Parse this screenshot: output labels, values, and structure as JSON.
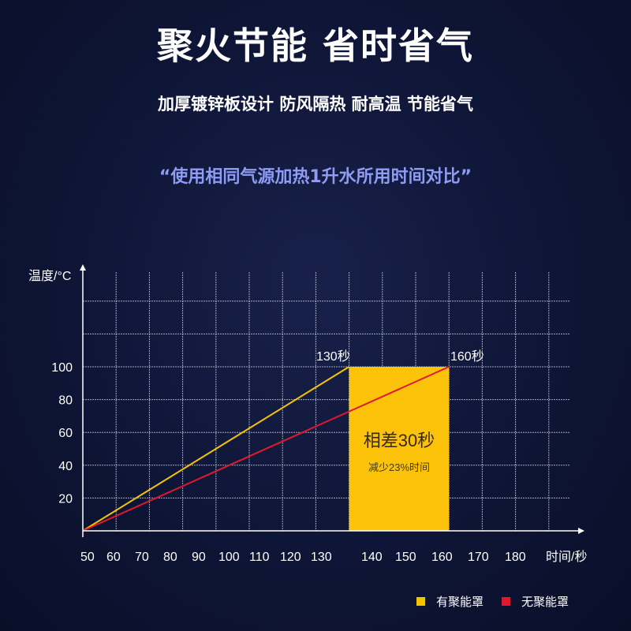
{
  "header": {
    "title": "聚火节能 省时省气",
    "subtitle": "加厚镀锌板设计 防风隔热 耐高温 节能省气",
    "quote": "“使用相同气源加热1升水所用时间对比”"
  },
  "colors": {
    "yellow": "#f5c400",
    "red": "#e0192e",
    "grid": "#c9cde0",
    "background": "#0e1536"
  },
  "chart_data": {
    "type": "line",
    "title": "",
    "xlabel": "时间/秒",
    "ylabel": "温度/°C",
    "xlim": [
      50,
      190
    ],
    "ylim": [
      0,
      160
    ],
    "x_ticks": [
      "50",
      "60",
      "70",
      "80",
      "90",
      "100",
      "110",
      "120",
      "130",
      "140",
      "150",
      "160",
      "170",
      "180"
    ],
    "y_ticks": [
      "20",
      "40",
      "60",
      "80",
      "100"
    ],
    "grid": true,
    "legend_position": "bottom-right",
    "series": [
      {
        "name": "有聚能罩",
        "color": "#f5c400",
        "points": [
          [
            50,
            0
          ],
          [
            130,
            100
          ]
        ]
      },
      {
        "name": "无聚能罩",
        "color": "#e0192e",
        "points": [
          [
            50,
            0
          ],
          [
            160,
            100
          ]
        ]
      }
    ],
    "highlight_region": {
      "x_from": 130,
      "x_to": 160,
      "y_from": 0,
      "y_to": 100,
      "color": "#fcc30a"
    },
    "annotations": {
      "yellow_end": "130秒",
      "red_end": "160秒",
      "diff_main": "相差30秒",
      "diff_sub": "减少23%时间"
    }
  }
}
